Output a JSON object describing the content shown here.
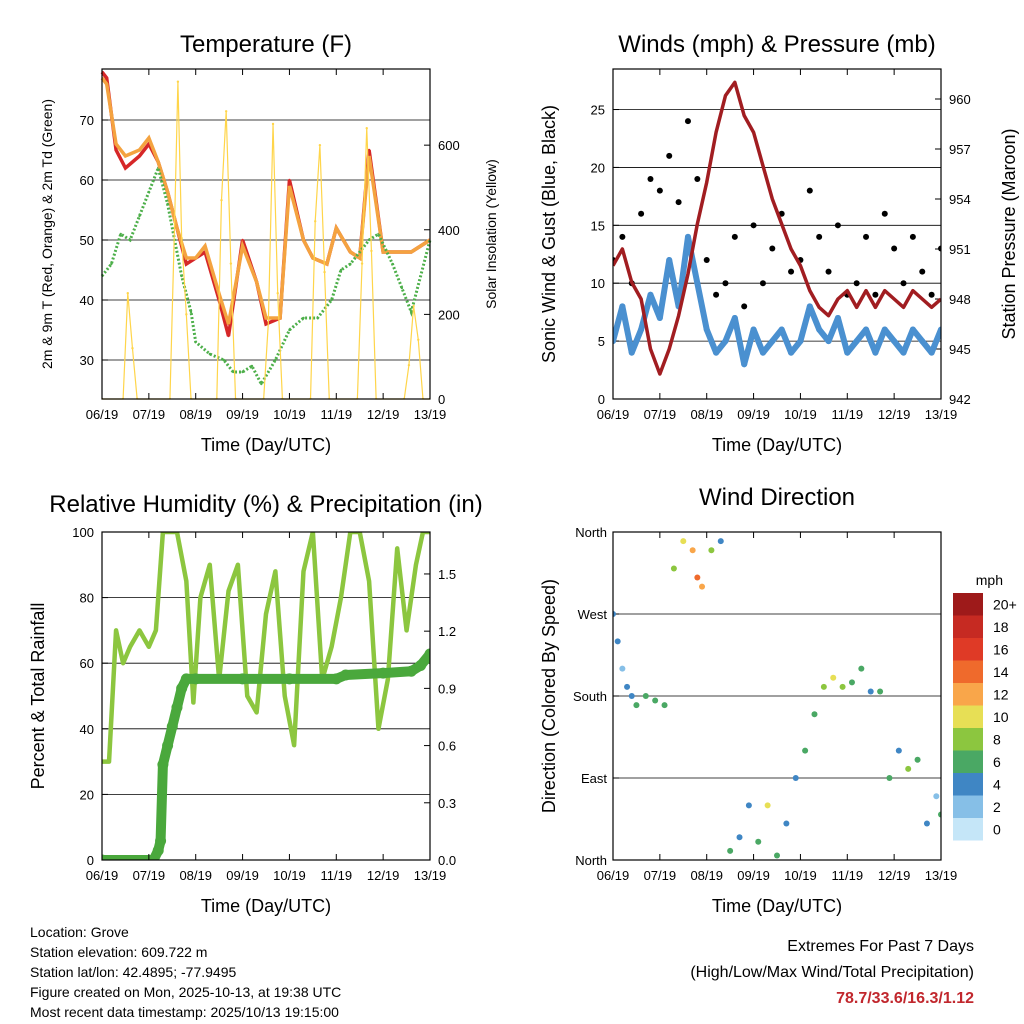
{
  "chart_data": [
    {
      "type": "line",
      "title": "Temperature (F)",
      "xlabel": "Time (Day/UTC)",
      "ylabel": "2m & 9m T (Red, Orange) & 2m Td (Green)",
      "ylabel_right": "Solar Insolation (Yellow)",
      "x_ticks": [
        "06/19",
        "07/19",
        "08/19",
        "09/19",
        "10/19",
        "11/19",
        "12/19",
        "13/19"
      ],
      "ylim": [
        23.5,
        78.5
      ],
      "y_ticks": [
        30,
        40,
        50,
        60,
        70
      ],
      "y2lim": [
        0,
        780
      ],
      "y2_ticks": [
        0,
        200,
        400,
        600
      ],
      "series": [
        {
          "name": "2m T",
          "color": "#d62728",
          "x": [
            0,
            0.1,
            0.3,
            0.5,
            0.8,
            1,
            1.2,
            1.4,
            1.6,
            1.8,
            2,
            2.2,
            2.5,
            2.7,
            3,
            3.3,
            3.5,
            3.8,
            4,
            4.3,
            4.5,
            4.8,
            5,
            5.3,
            5.5,
            5.7,
            6,
            6.3,
            6.6,
            6.8,
            7
          ],
          "values": [
            78,
            77,
            65,
            62,
            64,
            66,
            63,
            58,
            52,
            46,
            47,
            48,
            40,
            34,
            50,
            43,
            36,
            37,
            60,
            50,
            47,
            46,
            52,
            48,
            47,
            65,
            48,
            48,
            48,
            49,
            50
          ]
        },
        {
          "name": "9m T",
          "color": "#f4a340",
          "x": [
            0,
            0.1,
            0.3,
            0.5,
            0.8,
            1,
            1.2,
            1.4,
            1.6,
            1.8,
            2,
            2.2,
            2.5,
            2.7,
            3,
            3.3,
            3.5,
            3.8,
            4,
            4.3,
            4.5,
            4.8,
            5,
            5.3,
            5.5,
            5.7,
            6,
            6.3,
            6.6,
            6.8,
            7
          ],
          "values": [
            77,
            76,
            66,
            64,
            65,
            67,
            63,
            58,
            52,
            47,
            47,
            49,
            41,
            36,
            49,
            43,
            37,
            37,
            59,
            50,
            47,
            46,
            52,
            48,
            47,
            64,
            48,
            48,
            48,
            49,
            50
          ]
        },
        {
          "name": "2m Td",
          "color": "#4daf4a",
          "x": [
            0,
            0.2,
            0.4,
            0.6,
            0.8,
            1,
            1.2,
            1.4,
            1.7,
            1.9,
            2,
            2.3,
            2.6,
            2.8,
            3,
            3.2,
            3.4,
            3.7,
            4,
            4.3,
            4.6,
            4.9,
            5.1,
            5.3,
            5.5,
            5.7,
            5.9,
            6.2,
            6.4,
            6.6,
            7
          ],
          "values": [
            44,
            46,
            51,
            50,
            54,
            58,
            62,
            56,
            44,
            38,
            33,
            31,
            30,
            28,
            28,
            29,
            26,
            30,
            35,
            37,
            37,
            40,
            45,
            46,
            48,
            50,
            51,
            46,
            42,
            38,
            50
          ]
        },
        {
          "name": "Solar Insolation",
          "color": "#ffd54a",
          "axis": "right",
          "x": [
            0,
            0.45,
            0.55,
            0.65,
            0.75,
            1.45,
            1.55,
            1.62,
            1.7,
            1.8,
            1.9,
            2.45,
            2.55,
            2.65,
            2.75,
            2.85,
            3.45,
            3.55,
            3.65,
            3.75,
            3.85,
            4.45,
            4.55,
            4.65,
            4.75,
            4.85,
            5.45,
            5.55,
            5.65,
            5.75,
            5.85,
            6.45,
            6.55,
            6.65,
            6.75,
            6.85,
            7
          ],
          "values": [
            0,
            0,
            250,
            120,
            0,
            0,
            420,
            750,
            380,
            200,
            0,
            0,
            470,
            680,
            320,
            0,
            0,
            180,
            650,
            250,
            0,
            0,
            420,
            600,
            300,
            0,
            0,
            320,
            640,
            350,
            0,
            0,
            80,
            220,
            140,
            0,
            0
          ]
        }
      ]
    },
    {
      "type": "scatter",
      "title": "Winds (mph) & Pressure (mb)",
      "xlabel": "Time (Day/UTC)",
      "ylabel": "Sonic Wind & Gust (Blue, Black)",
      "ylabel_right": "Station Pressure (Maroon)",
      "x_ticks": [
        "06/19",
        "07/19",
        "08/19",
        "09/19",
        "10/19",
        "11/19",
        "12/19",
        "13/19"
      ],
      "ylim": [
        0,
        28.5
      ],
      "y_ticks": [
        0,
        5,
        10,
        15,
        20,
        25
      ],
      "y2lim": [
        942,
        961.8
      ],
      "y2_ticks": [
        942,
        945,
        948,
        951,
        954,
        957,
        960
      ],
      "series": [
        {
          "name": "Sonic Wind",
          "color": "#4a90d0",
          "x": [
            0,
            0.2,
            0.4,
            0.6,
            0.8,
            1,
            1.2,
            1.4,
            1.6,
            1.8,
            2,
            2.2,
            2.4,
            2.6,
            2.8,
            3,
            3.2,
            3.4,
            3.6,
            3.8,
            4,
            4.2,
            4.4,
            4.6,
            4.8,
            5,
            5.2,
            5.4,
            5.6,
            5.8,
            6,
            6.2,
            6.4,
            6.6,
            6.8,
            7
          ],
          "values": [
            5,
            8,
            4,
            6,
            9,
            7,
            12,
            8,
            14,
            10,
            6,
            4,
            5,
            7,
            3,
            6,
            4,
            5,
            6,
            4,
            5,
            8,
            6,
            5,
            7,
            4,
            5,
            6,
            4,
            6,
            5,
            4,
            6,
            5,
            4,
            6
          ]
        },
        {
          "name": "Gust",
          "color": "#000000",
          "x": [
            0,
            0.2,
            0.4,
            0.6,
            0.8,
            1,
            1.2,
            1.4,
            1.6,
            1.8,
            2,
            2.2,
            2.4,
            2.6,
            2.8,
            3,
            3.2,
            3.4,
            3.6,
            3.8,
            4,
            4.2,
            4.4,
            4.6,
            4.8,
            5,
            5.2,
            5.4,
            5.6,
            5.8,
            6,
            6.2,
            6.4,
            6.6,
            6.8,
            7
          ],
          "values": [
            12,
            14,
            10,
            16,
            19,
            18,
            21,
            17,
            24,
            19,
            12,
            9,
            10,
            14,
            8,
            15,
            10,
            13,
            16,
            11,
            12,
            18,
            14,
            11,
            15,
            9,
            10,
            14,
            9,
            16,
            13,
            10,
            14,
            11,
            9,
            13
          ]
        },
        {
          "name": "Station Pressure",
          "color": "#a11d21",
          "axis": "right",
          "x": [
            0,
            0.2,
            0.4,
            0.6,
            0.8,
            1,
            1.2,
            1.4,
            1.6,
            1.8,
            2,
            2.2,
            2.4,
            2.6,
            2.8,
            3,
            3.2,
            3.4,
            3.6,
            3.8,
            4,
            4.2,
            4.4,
            4.6,
            4.8,
            5,
            5.2,
            5.4,
            5.6,
            5.8,
            6,
            6.2,
            6.4,
            6.6,
            6.8,
            7
          ],
          "values": [
            950,
            951,
            949,
            948,
            945,
            943.5,
            945,
            947,
            949.5,
            952.5,
            955,
            958,
            960.2,
            961,
            959,
            958,
            956,
            954,
            952.5,
            951,
            950,
            948.5,
            947.5,
            947,
            948,
            948.5,
            947.5,
            948.5,
            947.5,
            948.5,
            948,
            947.5,
            948.5,
            948,
            947.5,
            948
          ]
        }
      ]
    },
    {
      "type": "line",
      "title": "Relative Humidity (%) & Precipitation (in)",
      "xlabel": "Time (Day/UTC)",
      "ylabel": "Percent & Total Rainfall",
      "x_ticks": [
        "06/19",
        "07/19",
        "08/19",
        "09/19",
        "10/19",
        "11/19",
        "12/19",
        "13/19"
      ],
      "ylim": [
        0,
        100
      ],
      "y_ticks": [
        0,
        20,
        40,
        60,
        80,
        100
      ],
      "y2lim": [
        0,
        1.72
      ],
      "y2_ticks": [
        "0.0",
        "0.3",
        "0.6",
        "0.9",
        "1.2",
        "1.5"
      ],
      "series": [
        {
          "name": "Relative Humidity",
          "color": "#8cc63f",
          "x": [
            0,
            0.15,
            0.3,
            0.45,
            0.6,
            0.8,
            1,
            1.15,
            1.3,
            1.45,
            1.6,
            1.8,
            1.95,
            2.1,
            2.3,
            2.5,
            2.7,
            2.9,
            3.1,
            3.3,
            3.5,
            3.7,
            3.9,
            4.1,
            4.3,
            4.5,
            4.7,
            4.9,
            5.1,
            5.3,
            5.5,
            5.7,
            5.9,
            6.1,
            6.3,
            6.5,
            6.7,
            6.85,
            7
          ],
          "values": [
            30,
            30,
            70,
            60,
            65,
            70,
            65,
            70,
            100,
            100,
            100,
            85,
            48,
            80,
            90,
            55,
            82,
            90,
            50,
            45,
            75,
            88,
            50,
            35,
            88,
            100,
            55,
            65,
            80,
            100,
            100,
            85,
            40,
            55,
            95,
            70,
            90,
            100,
            100
          ]
        },
        {
          "name": "Total Rainfall",
          "color": "#4aa83c",
          "axis": "right",
          "x": [
            0,
            1.1,
            1.2,
            1.25,
            1.3,
            1.4,
            1.5,
            1.6,
            1.7,
            1.8,
            2.0,
            3.0,
            4.0,
            5.0,
            5.2,
            6.0,
            6.6,
            6.8,
            7
          ],
          "values": [
            0,
            0,
            0.05,
            0.1,
            0.5,
            0.6,
            0.7,
            0.8,
            0.9,
            0.95,
            0.95,
            0.95,
            0.95,
            0.95,
            0.97,
            0.98,
            0.99,
            1.02,
            1.08
          ]
        }
      ]
    },
    {
      "type": "scatter",
      "title": "Wind Direction",
      "xlabel": "Time (Day/UTC)",
      "ylabel": "Direction (Colored By Speed)",
      "x_ticks": [
        "06/19",
        "07/19",
        "08/19",
        "09/19",
        "10/19",
        "11/19",
        "12/19",
        "13/19"
      ],
      "ylim": [
        0,
        360
      ],
      "y_ticks": [
        "North",
        "East",
        "South",
        "West",
        "North"
      ],
      "legend": {
        "title": "mph",
        "labels": [
          "20+",
          "18",
          "16",
          "14",
          "12",
          "10",
          "8",
          "6",
          "4",
          "2",
          "0"
        ],
        "colors": [
          "#9e1a1a",
          "#c62a22",
          "#df3a26",
          "#ef6a2c",
          "#f9a64a",
          "#e7df55",
          "#8cc63f",
          "#4aa864",
          "#3f86c4",
          "#86bfe7",
          "#c5e6f8"
        ]
      },
      "series": [
        {
          "name": "Direction",
          "x": [
            0,
            0.1,
            0.2,
            0.3,
            0.4,
            0.5,
            0.7,
            0.9,
            1.1,
            1.3,
            1.5,
            1.7,
            1.8,
            1.9,
            2.1,
            2.3,
            2.5,
            2.7,
            2.9,
            3.1,
            3.3,
            3.5,
            3.7,
            3.9,
            4.1,
            4.3,
            4.5,
            4.7,
            4.9,
            5.1,
            5.3,
            5.5,
            5.7,
            5.9,
            6.1,
            6.3,
            6.5,
            6.7,
            6.9,
            7
          ],
          "values": [
            270,
            240,
            210,
            190,
            180,
            170,
            180,
            175,
            170,
            320,
            350,
            340,
            310,
            300,
            340,
            350,
            10,
            25,
            60,
            20,
            60,
            5,
            40,
            90,
            120,
            160,
            190,
            200,
            190,
            195,
            210,
            185,
            185,
            90,
            120,
            100,
            110,
            40,
            70,
            50
          ],
          "speeds": [
            3,
            4,
            2,
            4,
            3,
            5,
            6,
            5,
            6,
            8,
            10,
            11,
            14,
            12,
            7,
            4,
            5,
            4,
            3,
            6,
            9,
            5,
            4,
            3,
            5,
            6,
            8,
            9,
            7,
            6,
            5,
            4,
            6,
            5,
            3,
            7,
            6,
            4,
            2,
            5
          ]
        }
      ]
    }
  ],
  "info": {
    "location": "Location: Grove",
    "elevation": "Station elevation: 609.722 m",
    "latlon": "Station lat/lon: 42.4895; -77.9495",
    "created": "Figure created on Mon, 2025-10-13, at 19:38 UTC",
    "recent": "Most recent data timestamp: 2025/10/13 19:15:00"
  },
  "extremes": {
    "line1": "Extremes For Past 7 Days",
    "line2": "(High/Low/Max Wind/Total Precipitation)",
    "values": "78.7/33.6/16.3/1.12"
  }
}
